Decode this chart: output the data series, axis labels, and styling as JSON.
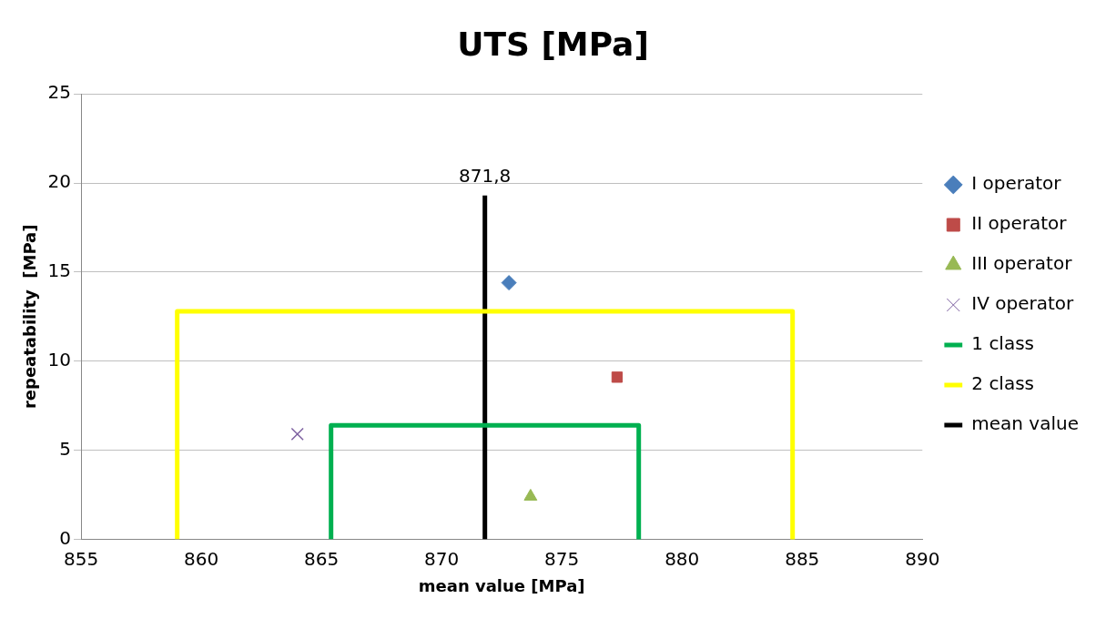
{
  "chart_data": {
    "type": "scatter",
    "title": "UTS [MPa]",
    "xlabel": "mean value [MPa]",
    "ylabel": "repeatability  [MPa]",
    "xlim": [
      855,
      890
    ],
    "xticks": [
      855,
      860,
      865,
      870,
      875,
      880,
      885,
      890
    ],
    "ylim": [
      0,
      25
    ],
    "yticks": [
      0,
      5,
      10,
      15,
      20,
      25
    ],
    "grid": "y",
    "legend": "right",
    "series": [
      {
        "name": "I operator",
        "marker": "diamond",
        "color": "#4a7ebb",
        "x": [
          872.8
        ],
        "values": [
          14.4
        ]
      },
      {
        "name": "II operator",
        "marker": "square",
        "color": "#be4b48",
        "x": [
          877.3
        ],
        "values": [
          9.1
        ]
      },
      {
        "name": "III operator",
        "marker": "triangle",
        "color": "#98b954",
        "x": [
          873.7
        ],
        "values": [
          2.4
        ]
      },
      {
        "name": "IV operator",
        "marker": "cross",
        "color": "#7d60a0",
        "x": [
          864.0
        ],
        "values": [
          5.9
        ]
      },
      {
        "name": "1 class",
        "type": "line",
        "marker": "none",
        "color": "#00b050",
        "x": [
          865.4,
          865.4,
          878.2,
          878.2
        ],
        "values": [
          0,
          6.4,
          6.4,
          0
        ]
      },
      {
        "name": "2 class",
        "type": "line",
        "marker": "none",
        "color": "#ffff00",
        "x": [
          859.0,
          859.0,
          884.6,
          884.6
        ],
        "values": [
          0,
          12.8,
          12.8,
          0
        ]
      },
      {
        "name": "mean value",
        "type": "line",
        "marker": "none",
        "color": "#000000",
        "x": [
          871.8,
          871.8
        ],
        "values": [
          0,
          19.3
        ]
      }
    ],
    "annotations": [
      {
        "text": "871,8",
        "x": 871.8,
        "y": 19.3
      }
    ]
  }
}
